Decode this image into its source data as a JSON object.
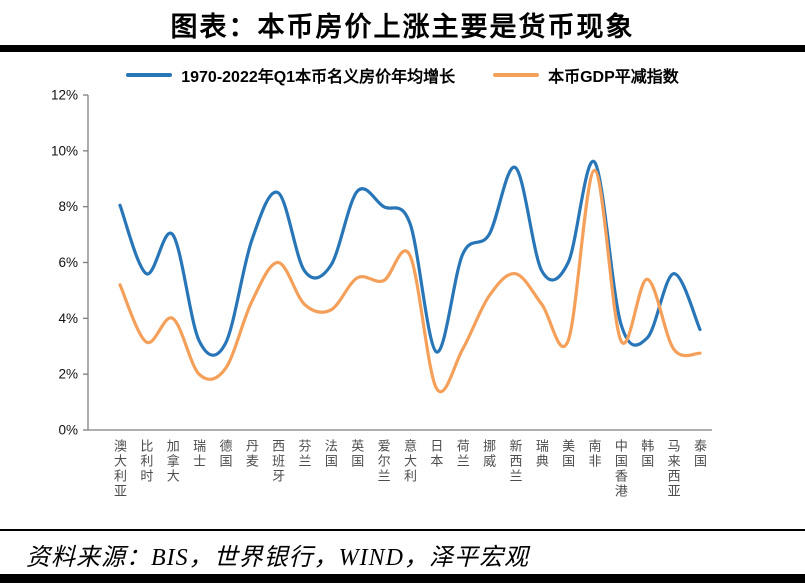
{
  "title": "图表：本币房价上涨主要是货币现象",
  "source": "资料来源：BIS，世界银行，WIND，泽平宏观",
  "legend": [
    {
      "label": "1970-2022年Q1本币名义房价年均增长",
      "color": "#2876B8"
    },
    {
      "label": "本币GDP平减指数",
      "color": "#F5A05A"
    }
  ],
  "chart_data": {
    "type": "line",
    "title": "图表：本币房价上涨主要是货币现象",
    "categories": [
      "澳大利亚",
      "比利时",
      "加拿大",
      "瑞士",
      "德国",
      "丹麦",
      "西班牙",
      "芬兰",
      "法国",
      "英国",
      "爱尔兰",
      "意大利",
      "日本",
      "荷兰",
      "挪威",
      "新西兰",
      "瑞典",
      "美国",
      "南非",
      "中国香港",
      "韩国",
      "马来西亚",
      "泰国"
    ],
    "series": [
      {
        "name": "1970-2022年Q1本币名义房价年均增长",
        "color": "#2876B8",
        "values": [
          8.05,
          5.6,
          7.0,
          3.2,
          3.1,
          6.8,
          8.5,
          5.7,
          5.9,
          8.55,
          8.0,
          7.4,
          2.8,
          6.3,
          7.0,
          9.4,
          5.7,
          6.0,
          9.6,
          3.8,
          3.3,
          5.6,
          3.6
        ]
      },
      {
        "name": "本币GDP平减指数",
        "color": "#F5A05A",
        "values": [
          5.2,
          3.15,
          4.0,
          2.0,
          2.2,
          4.6,
          6.0,
          4.5,
          4.3,
          5.45,
          5.35,
          6.25,
          1.5,
          2.9,
          4.8,
          5.6,
          4.5,
          3.2,
          9.3,
          3.2,
          5.4,
          2.9,
          2.75
        ]
      }
    ],
    "xlabel": "",
    "ylabel": "",
    "ylim": [
      0,
      12
    ],
    "yticks": [
      "0%",
      "2%",
      "4%",
      "6%",
      "8%",
      "10%",
      "12%"
    ],
    "grid": false,
    "legend_position": "top",
    "smooth": true
  }
}
